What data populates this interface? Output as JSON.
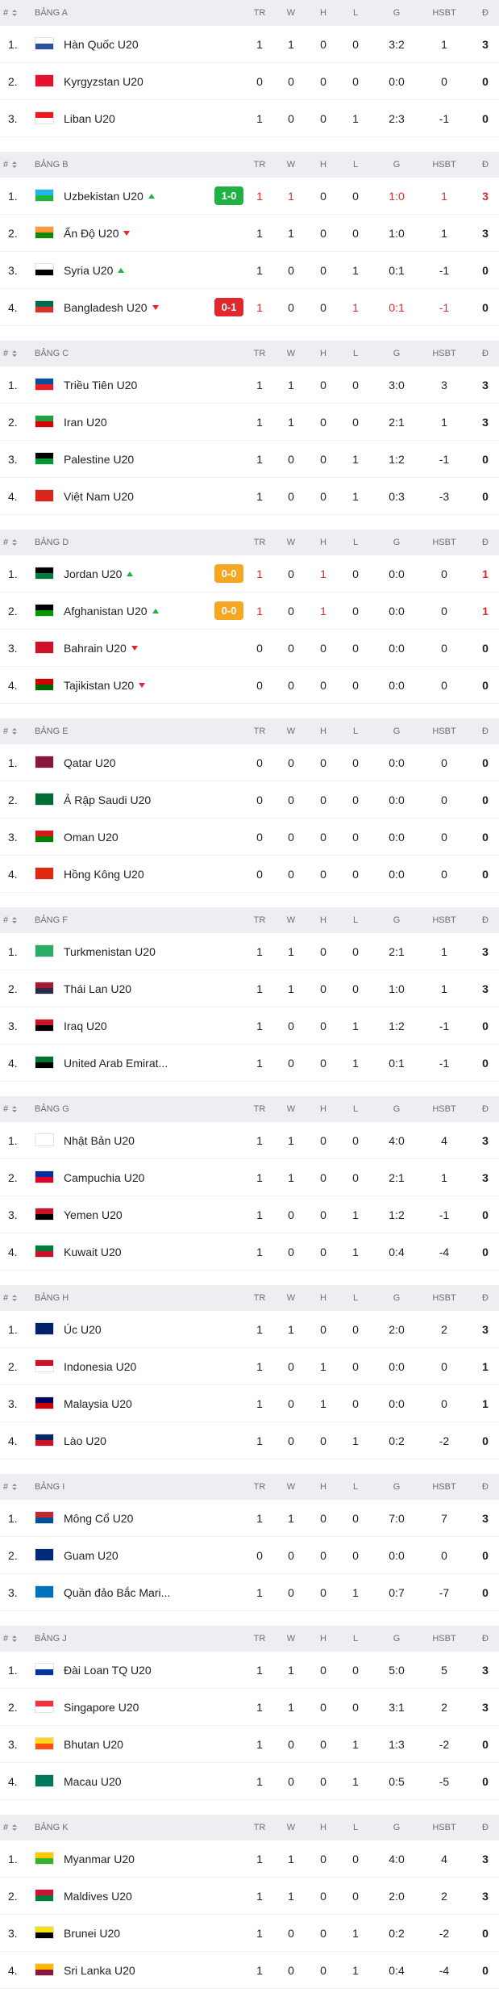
{
  "hash": "#",
  "columns": [
    "TR",
    "W",
    "H",
    "L",
    "G",
    "HSBT",
    "Đ"
  ],
  "groups": [
    {
      "name": "BẢNG A",
      "teams": [
        {
          "rank": "1.",
          "name": "Hàn Quốc U20",
          "flag": [
            "#ffffff",
            "#2c4f9e"
          ],
          "stats": [
            1,
            1,
            0,
            0,
            "3:2",
            1,
            3
          ]
        },
        {
          "rank": "2.",
          "name": "Kyrgyzstan U20",
          "flag": [
            "#e8112d",
            "#e8112d"
          ],
          "stats": [
            0,
            0,
            0,
            0,
            "0:0",
            0,
            0
          ]
        },
        {
          "rank": "3.",
          "name": "Liban U20",
          "flag": [
            "#ee161f",
            "#ffffff"
          ],
          "stats": [
            1,
            0,
            0,
            1,
            "2:3",
            -1,
            0
          ]
        }
      ]
    },
    {
      "name": "BẢNG B",
      "teams": [
        {
          "rank": "1.",
          "name": "Uzbekistan U20",
          "flag": [
            "#1eb5e8",
            "#1eb53a"
          ],
          "stats": [
            1,
            1,
            0,
            0,
            "1:0",
            1,
            3
          ],
          "trend": "up",
          "score": "1-0",
          "score_color": "#1fb141",
          "changed": [
            0,
            1,
            4,
            5,
            6
          ]
        },
        {
          "rank": "2.",
          "name": "Ấn Độ U20",
          "flag": [
            "#ff9933",
            "#138808"
          ],
          "stats": [
            1,
            1,
            0,
            0,
            "1:0",
            1,
            3
          ],
          "trend": "down"
        },
        {
          "rank": "3.",
          "name": "Syria U20",
          "flag": [
            "#ffffff",
            "#000000"
          ],
          "stats": [
            1,
            0,
            0,
            1,
            "0:1",
            -1,
            0
          ],
          "trend": "up"
        },
        {
          "rank": "4.",
          "name": "Bangladesh U20",
          "flag": [
            "#006a4e",
            "#d8302a"
          ],
          "stats": [
            1,
            0,
            0,
            1,
            "0:1",
            -1,
            0
          ],
          "trend": "down",
          "score": "0-1",
          "score_color": "#e0282e",
          "changed": [
            0,
            3,
            4,
            5
          ]
        }
      ]
    },
    {
      "name": "BẢNG C",
      "teams": [
        {
          "rank": "1.",
          "name": "Triều Tiên U20",
          "flag": [
            "#024fa2",
            "#ed1c27"
          ],
          "stats": [
            1,
            1,
            0,
            0,
            "3:0",
            3,
            3
          ]
        },
        {
          "rank": "2.",
          "name": "Iran U20",
          "flag": [
            "#239f40",
            "#da0000"
          ],
          "stats": [
            1,
            1,
            0,
            0,
            "2:1",
            1,
            3
          ]
        },
        {
          "rank": "3.",
          "name": "Palestine U20",
          "flag": [
            "#000000",
            "#009736"
          ],
          "stats": [
            1,
            0,
            0,
            1,
            "1:2",
            -1,
            0
          ]
        },
        {
          "rank": "4.",
          "name": "Việt Nam U20",
          "flag": [
            "#da251d",
            "#da251d"
          ],
          "stats": [
            1,
            0,
            0,
            1,
            "0:3",
            -3,
            0
          ]
        }
      ]
    },
    {
      "name": "BẢNG D",
      "teams": [
        {
          "rank": "1.",
          "name": "Jordan U20",
          "flag": [
            "#000000",
            "#007a3d"
          ],
          "stats": [
            1,
            0,
            1,
            0,
            "0:0",
            0,
            1
          ],
          "trend": "up",
          "score": "0-0",
          "score_color": "#f5a623",
          "changed": [
            0,
            2,
            6
          ]
        },
        {
          "rank": "2.",
          "name": "Afghanistan U20",
          "flag": [
            "#000000",
            "#009900"
          ],
          "stats": [
            1,
            0,
            1,
            0,
            "0:0",
            0,
            1
          ],
          "trend": "up",
          "score": "0-0",
          "score_color": "#f5a623",
          "changed": [
            0,
            2,
            6
          ]
        },
        {
          "rank": "3.",
          "name": "Bahrain U20",
          "flag": [
            "#ce1126",
            "#ce1126"
          ],
          "stats": [
            0,
            0,
            0,
            0,
            "0:0",
            0,
            0
          ],
          "trend": "down"
        },
        {
          "rank": "4.",
          "name": "Tajikistan U20",
          "flag": [
            "#cc0000",
            "#006600"
          ],
          "stats": [
            0,
            0,
            0,
            0,
            "0:0",
            0,
            0
          ],
          "trend": "down"
        }
      ]
    },
    {
      "name": "BẢNG E",
      "teams": [
        {
          "rank": "1.",
          "name": "Qatar U20",
          "flag": [
            "#8a1538",
            "#8a1538"
          ],
          "stats": [
            0,
            0,
            0,
            0,
            "0:0",
            0,
            0
          ]
        },
        {
          "rank": "2.",
          "name": "Ả Rập Saudi U20",
          "flag": [
            "#006c35",
            "#006c35"
          ],
          "stats": [
            0,
            0,
            0,
            0,
            "0:0",
            0,
            0
          ]
        },
        {
          "rank": "3.",
          "name": "Oman U20",
          "flag": [
            "#db161b",
            "#008000"
          ],
          "stats": [
            0,
            0,
            0,
            0,
            "0:0",
            0,
            0
          ]
        },
        {
          "rank": "4.",
          "name": "Hồng Kông U20",
          "flag": [
            "#de2910",
            "#de2910"
          ],
          "stats": [
            0,
            0,
            0,
            0,
            "0:0",
            0,
            0
          ]
        }
      ]
    },
    {
      "name": "BẢNG F",
      "teams": [
        {
          "rank": "1.",
          "name": "Turkmenistan U20",
          "flag": [
            "#28ae66",
            "#28ae66"
          ],
          "stats": [
            1,
            1,
            0,
            0,
            "2:1",
            1,
            3
          ]
        },
        {
          "rank": "2.",
          "name": "Thái Lan U20",
          "flag": [
            "#a51931",
            "#2d2a4a"
          ],
          "stats": [
            1,
            1,
            0,
            0,
            "1:0",
            1,
            3
          ]
        },
        {
          "rank": "3.",
          "name": "Iraq U20",
          "flag": [
            "#ce1126",
            "#000000"
          ],
          "stats": [
            1,
            0,
            0,
            1,
            "1:2",
            -1,
            0
          ]
        },
        {
          "rank": "4.",
          "name": "United Arab Emirat...",
          "flag": [
            "#00732f",
            "#000000"
          ],
          "stats": [
            1,
            0,
            0,
            1,
            "0:1",
            -1,
            0
          ]
        }
      ]
    },
    {
      "name": "BẢNG G",
      "teams": [
        {
          "rank": "1.",
          "name": "Nhật Bản U20",
          "flag": [
            "#ffffff",
            "#ffffff"
          ],
          "stats": [
            1,
            1,
            0,
            0,
            "4:0",
            4,
            3
          ]
        },
        {
          "rank": "2.",
          "name": "Campuchia U20",
          "flag": [
            "#032ea1",
            "#e00025"
          ],
          "stats": [
            1,
            1,
            0,
            0,
            "2:1",
            1,
            3
          ]
        },
        {
          "rank": "3.",
          "name": "Yemen U20",
          "flag": [
            "#ce1126",
            "#000000"
          ],
          "stats": [
            1,
            0,
            0,
            1,
            "1:2",
            -1,
            0
          ]
        },
        {
          "rank": "4.",
          "name": "Kuwait U20",
          "flag": [
            "#007a3d",
            "#ce1126"
          ],
          "stats": [
            1,
            0,
            0,
            1,
            "0:4",
            -4,
            0
          ]
        }
      ]
    },
    {
      "name": "BẢNG H",
      "teams": [
        {
          "rank": "1.",
          "name": "Úc U20",
          "flag": [
            "#012169",
            "#012169"
          ],
          "stats": [
            1,
            1,
            0,
            0,
            "2:0",
            2,
            3
          ]
        },
        {
          "rank": "2.",
          "name": "Indonesia U20",
          "flag": [
            "#ce1126",
            "#ffffff"
          ],
          "stats": [
            1,
            0,
            1,
            0,
            "0:0",
            0,
            1
          ]
        },
        {
          "rank": "3.",
          "name": "Malaysia U20",
          "flag": [
            "#010066",
            "#cc0001"
          ],
          "stats": [
            1,
            0,
            1,
            0,
            "0:0",
            0,
            1
          ]
        },
        {
          "rank": "4.",
          "name": "Lào U20",
          "flag": [
            "#002868",
            "#ce1126"
          ],
          "stats": [
            1,
            0,
            0,
            1,
            "0:2",
            -2,
            0
          ]
        }
      ]
    },
    {
      "name": "BẢNG I",
      "teams": [
        {
          "rank": "1.",
          "name": "Mông Cổ U20",
          "flag": [
            "#c4272f",
            "#015197"
          ],
          "stats": [
            1,
            1,
            0,
            0,
            "7:0",
            7,
            3
          ]
        },
        {
          "rank": "2.",
          "name": "Guam U20",
          "flag": [
            "#00297b",
            "#00297b"
          ],
          "stats": [
            0,
            0,
            0,
            0,
            "0:0",
            0,
            0
          ]
        },
        {
          "rank": "3.",
          "name": "Quần đảo Bắc Mari...",
          "flag": [
            "#0071bc",
            "#0071bc"
          ],
          "stats": [
            1,
            0,
            0,
            1,
            "0:7",
            -7,
            0
          ]
        }
      ]
    },
    {
      "name": "BẢNG J",
      "teams": [
        {
          "rank": "1.",
          "name": "Đài Loan TQ U20",
          "flag": [
            "#ffffff",
            "#0033a0"
          ],
          "stats": [
            1,
            1,
            0,
            0,
            "5:0",
            5,
            3
          ]
        },
        {
          "rank": "2.",
          "name": "Singapore U20",
          "flag": [
            "#ef3340",
            "#ffffff"
          ],
          "stats": [
            1,
            1,
            0,
            0,
            "3:1",
            2,
            3
          ]
        },
        {
          "rank": "3.",
          "name": "Bhutan U20",
          "flag": [
            "#ffd520",
            "#ff4e12"
          ],
          "stats": [
            1,
            0,
            0,
            1,
            "1:3",
            -2,
            0
          ]
        },
        {
          "rank": "4.",
          "name": "Macau U20",
          "flag": [
            "#00785e",
            "#00785e"
          ],
          "stats": [
            1,
            0,
            0,
            1,
            "0:5",
            -5,
            0
          ]
        }
      ]
    },
    {
      "name": "BẢNG K",
      "teams": [
        {
          "rank": "1.",
          "name": "Myanmar U20",
          "flag": [
            "#fecb00",
            "#34b233"
          ],
          "stats": [
            1,
            1,
            0,
            0,
            "4:0",
            4,
            3
          ]
        },
        {
          "rank": "2.",
          "name": "Maldives U20",
          "flag": [
            "#d21034",
            "#007e3a"
          ],
          "stats": [
            1,
            1,
            0,
            0,
            "2:0",
            2,
            3
          ]
        },
        {
          "rank": "3.",
          "name": "Brunei U20",
          "flag": [
            "#f7e017",
            "#000000"
          ],
          "stats": [
            1,
            0,
            0,
            1,
            "0:2",
            -2,
            0
          ]
        },
        {
          "rank": "4.",
          "name": "Sri Lanka U20",
          "flag": [
            "#ffb700",
            "#8d153a"
          ],
          "stats": [
            1,
            0,
            0,
            1,
            "0:4",
            -4,
            0
          ]
        }
      ]
    }
  ]
}
